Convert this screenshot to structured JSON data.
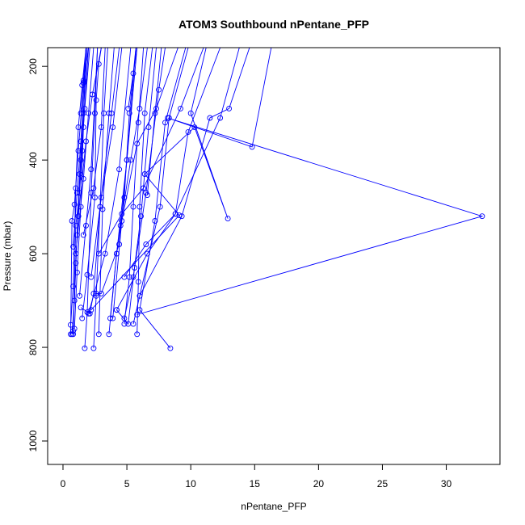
{
  "chart_data": {
    "type": "scatter",
    "title": "ATOM3 Southbound nPentane_PFP",
    "xlabel": "nPentane_PFP",
    "ylabel": "Pressure (mbar)",
    "xlim": [
      -1.2,
      34.2
    ],
    "ylim": [
      1050,
      160
    ],
    "y_reversed": true,
    "x_ticks": [
      0,
      5,
      10,
      15,
      20,
      25,
      30
    ],
    "y_ticks": [
      200,
      400,
      600,
      800,
      1000
    ],
    "grid": false,
    "series_color": "#0000ff",
    "marker": "open-circle",
    "profiles": [
      [
        [
          0.7,
          772
        ],
        [
          0.9,
          700
        ],
        [
          1.1,
          560
        ],
        [
          1.3,
          430
        ],
        [
          1.6,
          300
        ],
        [
          1.9,
          160
        ]
      ],
      [
        [
          0.8,
          765
        ],
        [
          1.0,
          620
        ],
        [
          1.2,
          520
        ],
        [
          1.4,
          400
        ],
        [
          1.7,
          290
        ],
        [
          2.1,
          160
        ]
      ],
      [
        [
          0.6,
          752
        ],
        [
          0.8,
          670
        ],
        [
          1.0,
          460
        ],
        [
          1.2,
          330
        ],
        [
          1.5,
          240
        ],
        [
          1.8,
          160
        ]
      ],
      [
        [
          0.8,
          772
        ],
        [
          1.0,
          540
        ],
        [
          1.3,
          470
        ],
        [
          1.5,
          380
        ],
        [
          1.8,
          160
        ]
      ],
      [
        [
          0.6,
          772
        ],
        [
          0.7,
          530
        ],
        [
          0.9,
          495
        ],
        [
          1.2,
          380
        ],
        [
          1.6,
          235
        ],
        [
          2.0,
          160
        ]
      ],
      [
        [
          0.9,
          760
        ],
        [
          1.1,
          640
        ],
        [
          1.4,
          500
        ],
        [
          1.6,
          330
        ],
        [
          2.0,
          160
        ]
      ],
      [
        [
          1.7,
          802
        ],
        [
          1.9,
          725
        ],
        [
          2.2,
          470
        ],
        [
          2.5,
          300
        ],
        [
          2.7,
          160
        ]
      ],
      [
        [
          2.4,
          802
        ],
        [
          2.6,
          690
        ],
        [
          2.9,
          500
        ],
        [
          3.2,
          300
        ],
        [
          3.5,
          160
        ]
      ],
      [
        [
          1.5,
          738
        ],
        [
          1.9,
          645
        ],
        [
          2.5,
          480
        ],
        [
          2.6,
          272
        ],
        [
          2.8,
          195
        ],
        [
          3.0,
          160
        ]
      ],
      [
        [
          2.8,
          772
        ],
        [
          3.1,
          505
        ],
        [
          3.6,
          300
        ],
        [
          4.0,
          160
        ]
      ],
      [
        [
          3.6,
          772
        ],
        [
          4.2,
          600
        ],
        [
          5.0,
          400
        ],
        [
          5.8,
          160
        ]
      ],
      [
        [
          1.4,
          715
        ],
        [
          2.1,
          728
        ],
        [
          2.4,
          685
        ],
        [
          2.9,
          500
        ],
        [
          3.8,
          300
        ],
        [
          4.4,
          160
        ]
      ],
      [
        [
          4.8,
          750
        ],
        [
          5.2,
          650
        ],
        [
          5.5,
          500
        ],
        [
          5.9,
          320
        ],
        [
          6.3,
          160
        ]
      ],
      [
        [
          5.8,
          772
        ],
        [
          5.9,
          660
        ],
        [
          6.0,
          500
        ],
        [
          6.4,
          300
        ],
        [
          7.0,
          160
        ]
      ],
      [
        [
          3.7,
          738
        ],
        [
          4.2,
          600
        ],
        [
          4.8,
          480
        ],
        [
          5.2,
          300
        ],
        [
          5.7,
          160
        ]
      ],
      [
        [
          2.6,
          685
        ],
        [
          3.0,
          685
        ],
        [
          4.4,
          580
        ],
        [
          5.0,
          400
        ],
        [
          5.7,
          160
        ]
      ],
      [
        [
          4.8,
          738
        ],
        [
          5.5,
          650
        ],
        [
          6.1,
          520
        ],
        [
          6.7,
          330
        ],
        [
          7.3,
          160
        ]
      ],
      [
        [
          4.2,
          720
        ],
        [
          5.1,
          750
        ],
        [
          5.6,
          630
        ],
        [
          6.5,
          470
        ],
        [
          7.5,
          250
        ],
        [
          8.0,
          160
        ]
      ],
      [
        [
          3.9,
          738
        ],
        [
          4.6,
          530
        ],
        [
          5.8,
          365
        ],
        [
          7.3,
          290
        ],
        [
          9.0,
          160
        ]
      ],
      [
        [
          5.5,
          750
        ],
        [
          7.6,
          500
        ],
        [
          8.3,
          310
        ],
        [
          9.8,
          160
        ]
      ],
      [
        [
          8.4,
          802
        ],
        [
          6.0,
          720
        ],
        [
          7.2,
          530
        ],
        [
          8.0,
          320
        ],
        [
          9.6,
          160
        ]
      ],
      [
        [
          2.8,
          600
        ],
        [
          4.6,
          515
        ],
        [
          6.3,
          460
        ],
        [
          9.2,
          290
        ],
        [
          11.0,
          160
        ]
      ],
      [
        [
          4.8,
          650
        ],
        [
          6.5,
          580
        ],
        [
          8.8,
          515
        ],
        [
          9.8,
          340
        ],
        [
          12.3,
          160
        ]
      ],
      [
        [
          4.2,
          720
        ],
        [
          6.6,
          600
        ],
        [
          8.8,
          515
        ],
        [
          12.3,
          310
        ],
        [
          13.8,
          160
        ]
      ],
      [
        [
          6.0,
          690
        ],
        [
          9.3,
          520
        ],
        [
          11.5,
          310
        ],
        [
          13.0,
          290
        ],
        [
          14.6,
          160
        ]
      ],
      [
        [
          5.8,
          730
        ],
        [
          32.8,
          520
        ],
        [
          8.2,
          310
        ],
        [
          14.8,
          372
        ],
        [
          16.3,
          160
        ]
      ],
      [
        [
          2.2,
          720
        ],
        [
          9.1,
          518
        ],
        [
          6.4,
          430
        ],
        [
          10.3,
          330
        ],
        [
          12.9,
          525
        ],
        [
          10.0,
          300
        ],
        [
          11.2,
          160
        ]
      ],
      [
        [
          1.2,
          520
        ],
        [
          1.8,
          360
        ],
        [
          2.3,
          260
        ],
        [
          3.0,
          160
        ]
      ],
      [
        [
          1.0,
          600
        ],
        [
          1.6,
          440
        ],
        [
          2.0,
          300
        ],
        [
          2.4,
          160
        ]
      ],
      [
        [
          1.3,
          690
        ],
        [
          1.8,
          540
        ],
        [
          2.2,
          420
        ],
        [
          2.7,
          160
        ]
      ],
      [
        [
          0.8,
          585
        ],
        [
          1.1,
          470
        ],
        [
          1.4,
          360
        ],
        [
          1.8,
          160
        ]
      ],
      [
        [
          1.6,
          560
        ],
        [
          2.4,
          460
        ],
        [
          3.0,
          330
        ],
        [
          3.3,
          160
        ]
      ],
      [
        [
          2.2,
          650
        ],
        [
          3.0,
          480
        ],
        [
          3.9,
          330
        ],
        [
          4.6,
          160
        ]
      ],
      [
        [
          2.0,
          728
        ],
        [
          3.3,
          600
        ],
        [
          4.4,
          420
        ],
        [
          5.3,
          160
        ]
      ],
      [
        [
          4.5,
          540
        ],
        [
          5.3,
          400
        ],
        [
          6.0,
          290
        ],
        [
          6.6,
          160
        ]
      ],
      [
        [
          1.4,
          300
        ],
        [
          1.6,
          230
        ],
        [
          1.8,
          160
        ]
      ],
      [
        [
          5.1,
          290
        ],
        [
          5.5,
          215
        ],
        [
          5.8,
          160
        ]
      ],
      [
        [
          6.6,
          475
        ],
        [
          7.2,
          300
        ],
        [
          7.7,
          160
        ]
      ]
    ]
  }
}
